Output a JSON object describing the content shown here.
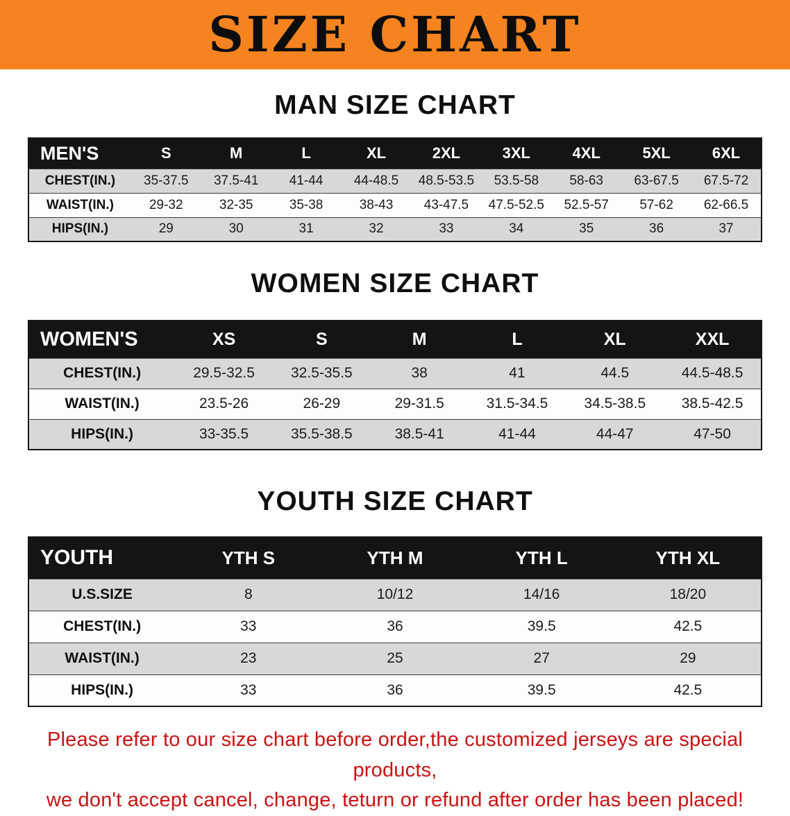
{
  "banner": {
    "title": "SIZE CHART"
  },
  "colors": {
    "banner_bg": "#f5831f",
    "table_header_bg": "#141414",
    "row_alt_gray": "#d8d8d8",
    "disclaimer_red": "#ce1111"
  },
  "men": {
    "heading": "MAN SIZE CHART",
    "table": {
      "header": [
        "MEN'S",
        "S",
        "M",
        "L",
        "XL",
        "2XL",
        "3XL",
        "4XL",
        "5XL",
        "6XL"
      ],
      "rows": [
        [
          "CHEST(IN.)",
          "35-37.5",
          "37.5-41",
          "41-44",
          "44-48.5",
          "48.5-53.5",
          "53.5-58",
          "58-63",
          "63-67.5",
          "67.5-72"
        ],
        [
          "WAIST(IN.)",
          "29-32",
          "32-35",
          "35-38",
          "38-43",
          "43-47.5",
          "47.5-52.5",
          "52.5-57",
          "57-62",
          "62-66.5"
        ],
        [
          "HIPS(IN.)",
          "29",
          "30",
          "31",
          "32",
          "33",
          "34",
          "35",
          "36",
          "37"
        ]
      ]
    }
  },
  "women": {
    "heading": "WOMEN SIZE CHART",
    "table": {
      "header": [
        "WOMEN'S",
        "XS",
        "S",
        "M",
        "L",
        "XL",
        "XXL"
      ],
      "rows": [
        [
          "CHEST(IN.)",
          "29.5-32.5",
          "32.5-35.5",
          "38",
          "41",
          "44.5",
          "44.5-48.5"
        ],
        [
          "WAIST(IN.)",
          "23.5-26",
          "26-29",
          "29-31.5",
          "31.5-34.5",
          "34.5-38.5",
          "38.5-42.5"
        ],
        [
          "HIPS(IN.)",
          "33-35.5",
          "35.5-38.5",
          "38.5-41",
          "41-44",
          "44-47",
          "47-50"
        ]
      ]
    }
  },
  "youth": {
    "heading": "YOUTH SIZE CHART",
    "table": {
      "header": [
        "YOUTH",
        "YTH S",
        "YTH M",
        "YTH L",
        "YTH XL"
      ],
      "rows": [
        [
          "U.S.SIZE",
          "8",
          "10/12",
          "14/16",
          "18/20"
        ],
        [
          "CHEST(IN.)",
          "33",
          "36",
          "39.5",
          "42.5"
        ],
        [
          "WAIST(IN.)",
          "23",
          "25",
          "27",
          "29"
        ],
        [
          "HIPS(IN.)",
          "33",
          "36",
          "39.5",
          "42.5"
        ]
      ]
    }
  },
  "disclaimer": {
    "line1": "Please refer to our size chart before order,the customized jerseys are special products,",
    "line2": "we don't accept cancel, change, teturn or refund after order has been placed!"
  }
}
